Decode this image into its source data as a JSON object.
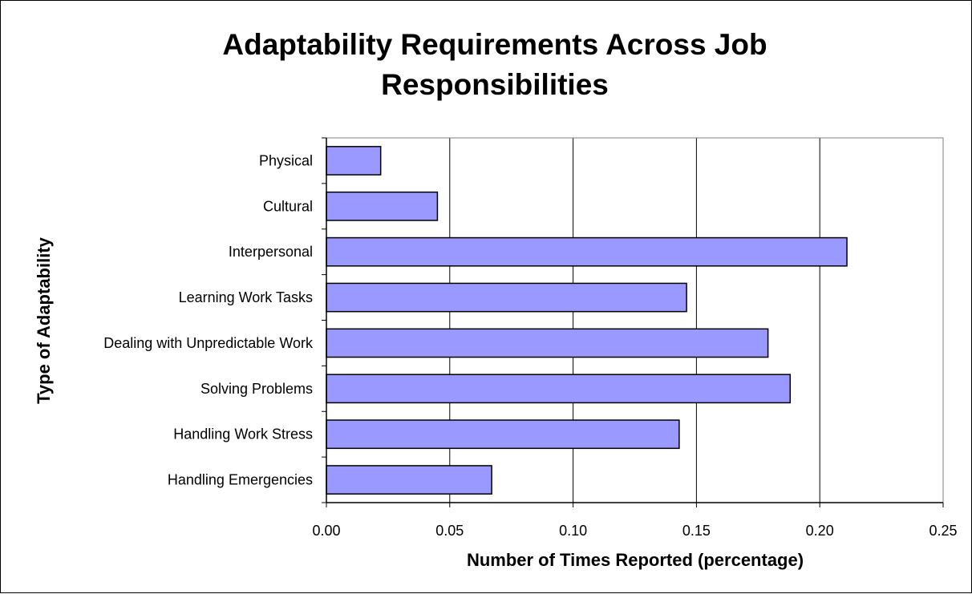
{
  "chart_data": {
    "type": "bar",
    "orientation": "horizontal",
    "title_lines": [
      "Adaptability Requirements Across Job",
      "Responsibilities"
    ],
    "xlabel": "Number of Times Reported (percentage)",
    "ylabel": "Type of Adaptability",
    "categories": [
      "Physical",
      "Cultural",
      "Interpersonal",
      "Learning Work Tasks",
      "Dealing with Unpredictable Work",
      "Solving Problems",
      "Handling Work Stress",
      "Handling Emergencies"
    ],
    "values": [
      0.022,
      0.045,
      0.211,
      0.146,
      0.179,
      0.188,
      0.143,
      0.067
    ],
    "xlim": [
      0,
      0.25
    ],
    "xticks": [
      "0.00",
      "0.05",
      "0.10",
      "0.15",
      "0.20",
      "0.25"
    ],
    "bar_color": "#9999ff",
    "grid": "vertical",
    "legend": "none"
  }
}
